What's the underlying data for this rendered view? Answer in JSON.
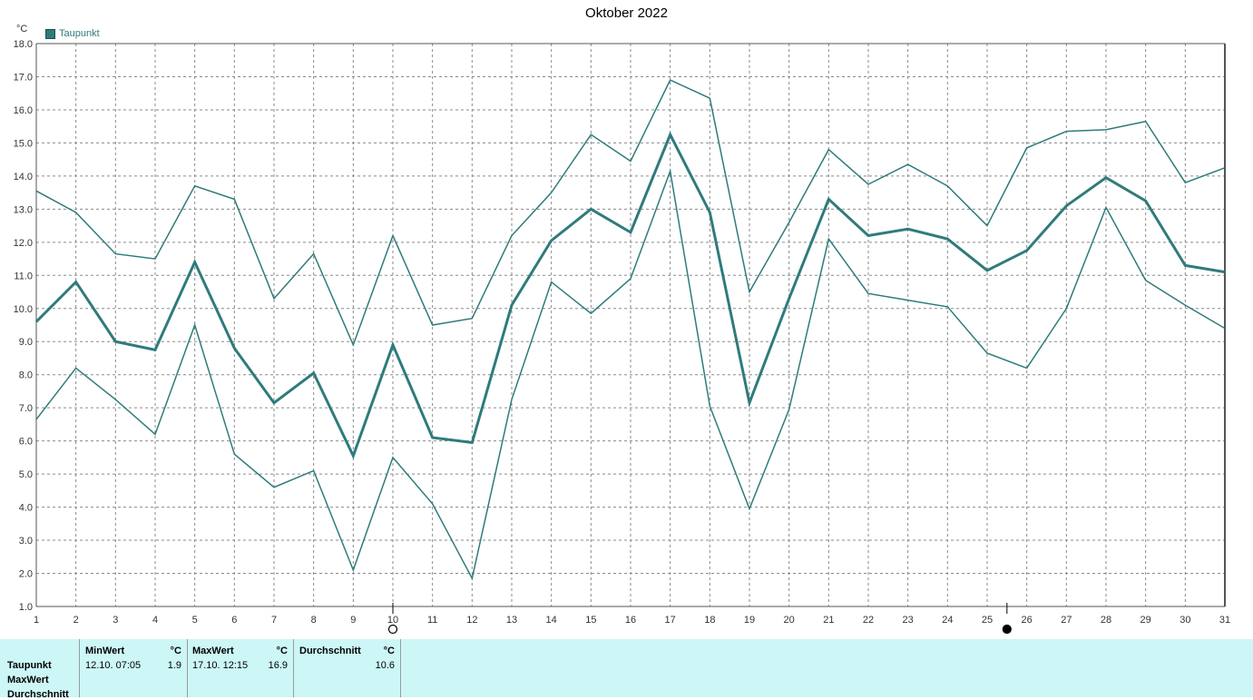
{
  "title": "Oktober 2022",
  "unit": "°C",
  "legend": {
    "label": "Taupunkt",
    "color": "#2f7b7b"
  },
  "chart_data": {
    "type": "line",
    "title": "Oktober 2022",
    "ylabel": "°C",
    "x": [
      1,
      2,
      3,
      4,
      5,
      6,
      7,
      8,
      9,
      10,
      11,
      12,
      13,
      14,
      15,
      16,
      17,
      18,
      19,
      20,
      21,
      22,
      23,
      24,
      25,
      26,
      27,
      28,
      29,
      30,
      31
    ],
    "ylim": [
      1.0,
      18.0
    ],
    "yticks": [
      "1.0",
      "2.0",
      "3.0",
      "4.0",
      "5.0",
      "6.0",
      "7.0",
      "8.0",
      "9.0",
      "10.0",
      "11.0",
      "12.0",
      "13.0",
      "14.0",
      "15.0",
      "16.0",
      "17.0",
      "18.0"
    ],
    "grid": true,
    "series": [
      {
        "name": "MaxWert",
        "style": "thin",
        "values": [
          13.55,
          12.9,
          11.65,
          11.5,
          13.7,
          13.3,
          10.3,
          11.65,
          8.9,
          12.2,
          9.5,
          9.7,
          12.2,
          13.5,
          15.25,
          14.45,
          16.9,
          16.35,
          10.5,
          12.6,
          14.8,
          13.75,
          14.35,
          13.7,
          12.5,
          14.85,
          15.35,
          15.4,
          15.65,
          13.8,
          14.25
        ]
      },
      {
        "name": "Durchschnitt",
        "style": "thick",
        "values": [
          9.6,
          10.8,
          9.0,
          8.75,
          11.4,
          8.8,
          7.15,
          8.05,
          5.55,
          8.9,
          6.1,
          5.95,
          10.1,
          12.05,
          13.0,
          12.3,
          15.25,
          12.9,
          7.15,
          10.3,
          13.3,
          12.2,
          12.4,
          12.1,
          11.15,
          11.75,
          13.1,
          13.95,
          13.25,
          11.3,
          11.1
        ]
      },
      {
        "name": "Taupunkt",
        "style": "thin",
        "values": [
          6.65,
          8.2,
          7.25,
          6.2,
          9.5,
          5.6,
          4.6,
          5.1,
          2.1,
          5.5,
          4.1,
          1.85,
          7.25,
          10.8,
          9.85,
          10.9,
          14.15,
          7.05,
          3.95,
          6.95,
          12.1,
          10.45,
          10.25,
          10.05,
          8.65,
          8.2,
          10.0,
          13.05,
          10.85,
          10.1,
          9.4
        ]
      }
    ],
    "markers": [
      {
        "x": 10,
        "symbol": "open-circle"
      },
      {
        "x": 25.5,
        "symbol": "filled-circle"
      }
    ]
  },
  "stats": {
    "row_labels": [
      "Taupunkt",
      "MaxWert",
      "Durchschnitt"
    ],
    "columns": [
      {
        "header": "MinWert",
        "unit": "°C",
        "date": "12.10.  07:05",
        "value": "1.9"
      },
      {
        "header": "MaxWert",
        "unit": "°C",
        "date": "17.10.  12:15",
        "value": "16.9"
      },
      {
        "header": "Durchschnitt",
        "unit": "°C",
        "date": "",
        "value": "10.6"
      }
    ]
  }
}
